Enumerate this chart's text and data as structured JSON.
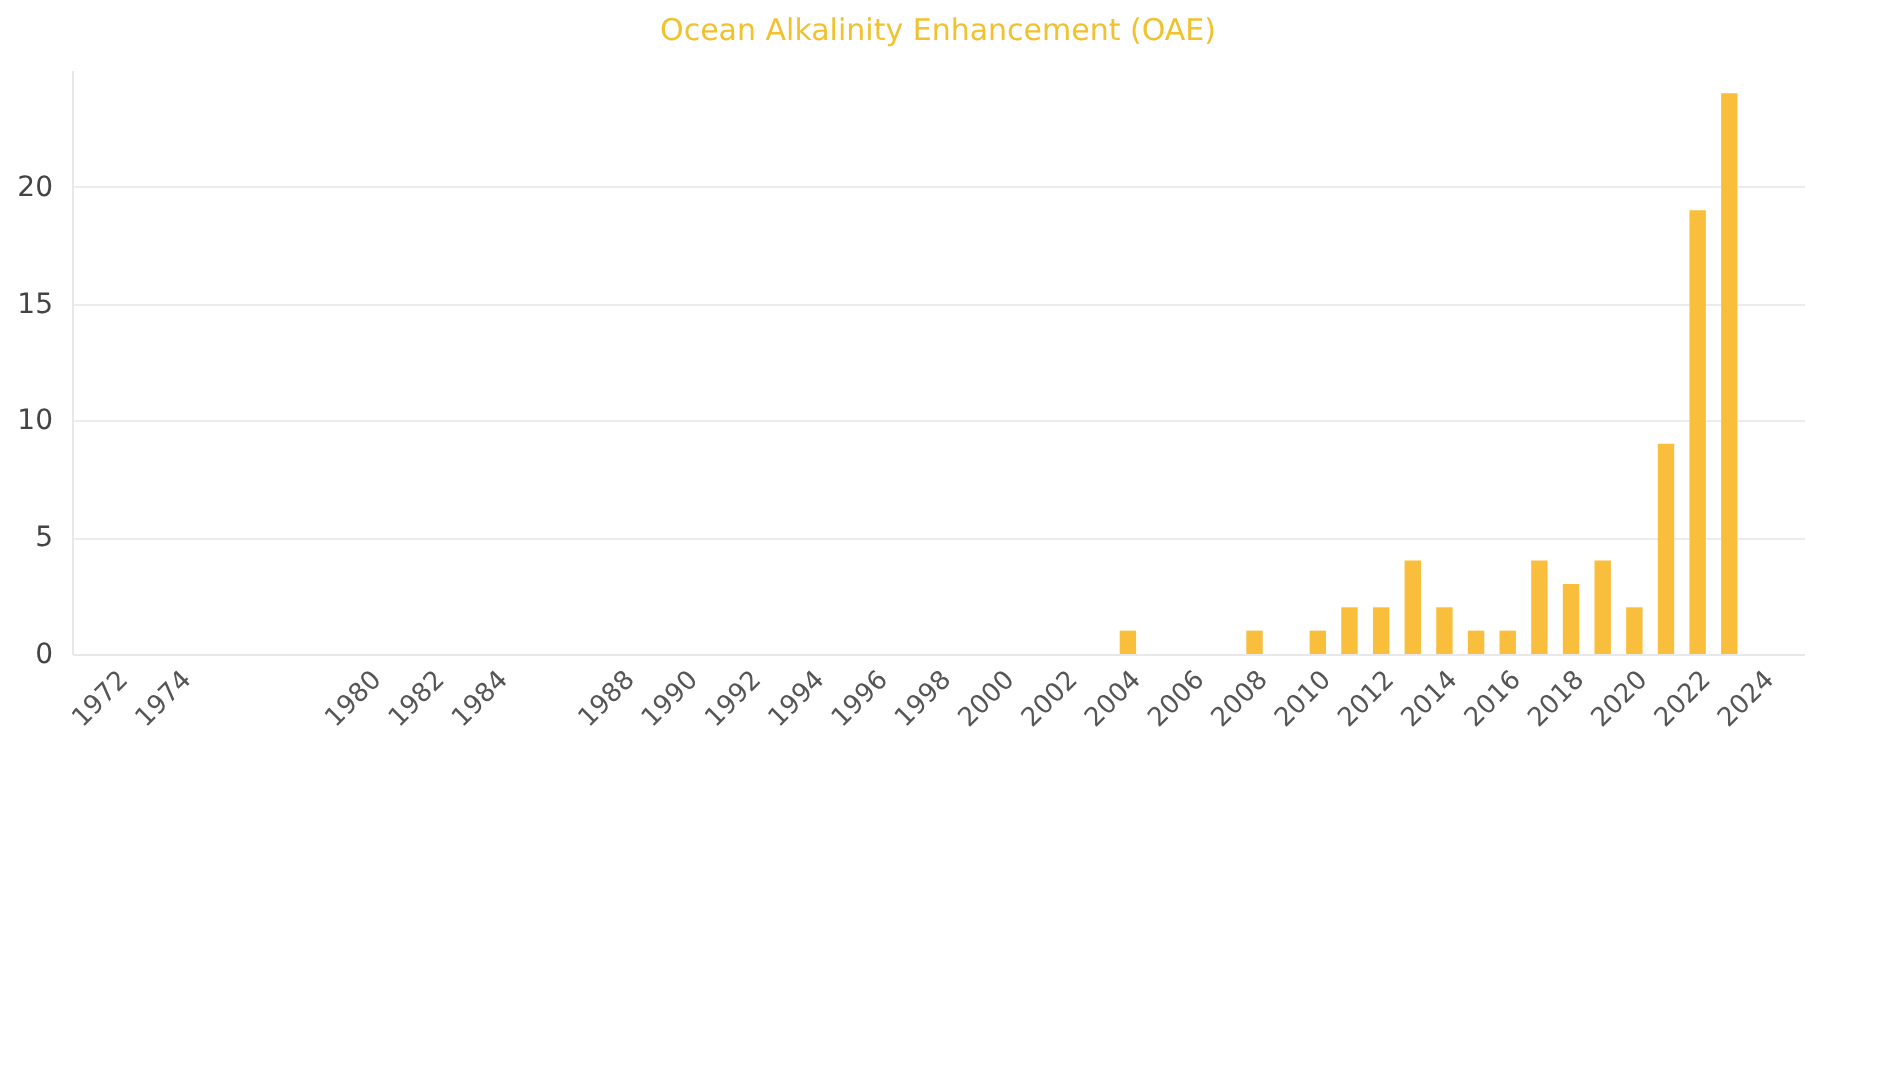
{
  "chart_data": {
    "type": "bar",
    "title": "Ocean Alkalinity Enhancement (OAE)",
    "categories": [
      "1972",
      null,
      "1974",
      null,
      null,
      null,
      null,
      null,
      "1980",
      null,
      "1982",
      null,
      "1984",
      null,
      null,
      null,
      "1988",
      null,
      "1990",
      null,
      "1992",
      null,
      "1994",
      null,
      "1996",
      null,
      "1998",
      null,
      "2000",
      null,
      "2002",
      null,
      "2004",
      null,
      "2006",
      null,
      "2008",
      null,
      "2010",
      null,
      "2012",
      null,
      "2014",
      null,
      "2016",
      null,
      "2018",
      null,
      "2020",
      null,
      "2022",
      null,
      "2024"
    ],
    "values": [
      0,
      0,
      0,
      0,
      0,
      0,
      0,
      0,
      0,
      0,
      0,
      0,
      0,
      0,
      0,
      0,
      0,
      0,
      0,
      0,
      0,
      0,
      0,
      0,
      0,
      0,
      0,
      0,
      0,
      0,
      0,
      0,
      1,
      0,
      0,
      0,
      1,
      0,
      1,
      2,
      2,
      4,
      2,
      1,
      1,
      4,
      3,
      4,
      2,
      9,
      19,
      24,
      0
    ],
    "color": "#f9bf3c",
    "ylim": [
      0,
      25
    ],
    "yticks": [
      0,
      5,
      10,
      15,
      20
    ],
    "grid": "y"
  }
}
